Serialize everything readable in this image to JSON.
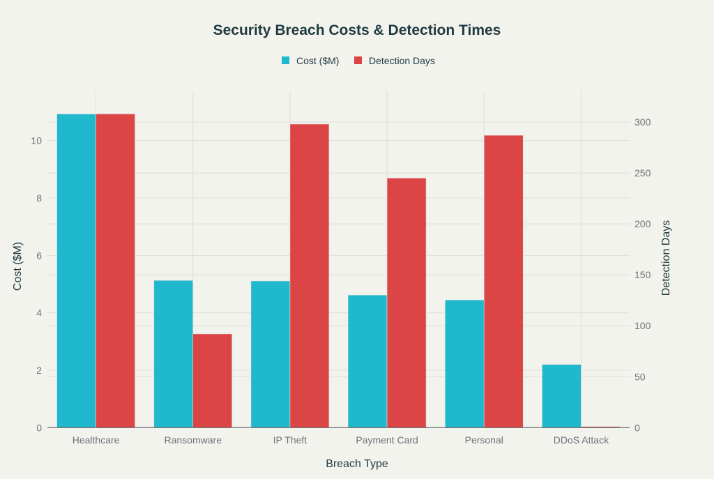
{
  "chart_data": {
    "type": "bar",
    "title": "Security Breach Costs & Detection Times",
    "xlabel": "Breach Type",
    "ylabel": "Cost ($M)",
    "y2label": "Detection Days",
    "categories": [
      "Healthcare",
      "Ransomware",
      "IP Theft",
      "Payment Card",
      "Personal",
      "DDoS Attack"
    ],
    "series": [
      {
        "name": "Cost ($M)",
        "axis": "left",
        "color": "#1fb8cd",
        "values": [
          10.93,
          5.13,
          5.11,
          4.62,
          4.45,
          2.2
        ]
      },
      {
        "name": "Detection Days",
        "axis": "right",
        "color": "#db4545",
        "values": [
          308,
          92,
          298,
          245,
          287,
          1
        ]
      }
    ],
    "ylim": [
      0,
      11.5
    ],
    "y2lim": [
      0,
      324
    ],
    "yticks": [
      0,
      2,
      4,
      6,
      8,
      10
    ],
    "y2ticks": [
      0,
      50,
      100,
      150,
      200,
      250,
      300
    ],
    "legend_position": "top-center",
    "grid": true
  }
}
